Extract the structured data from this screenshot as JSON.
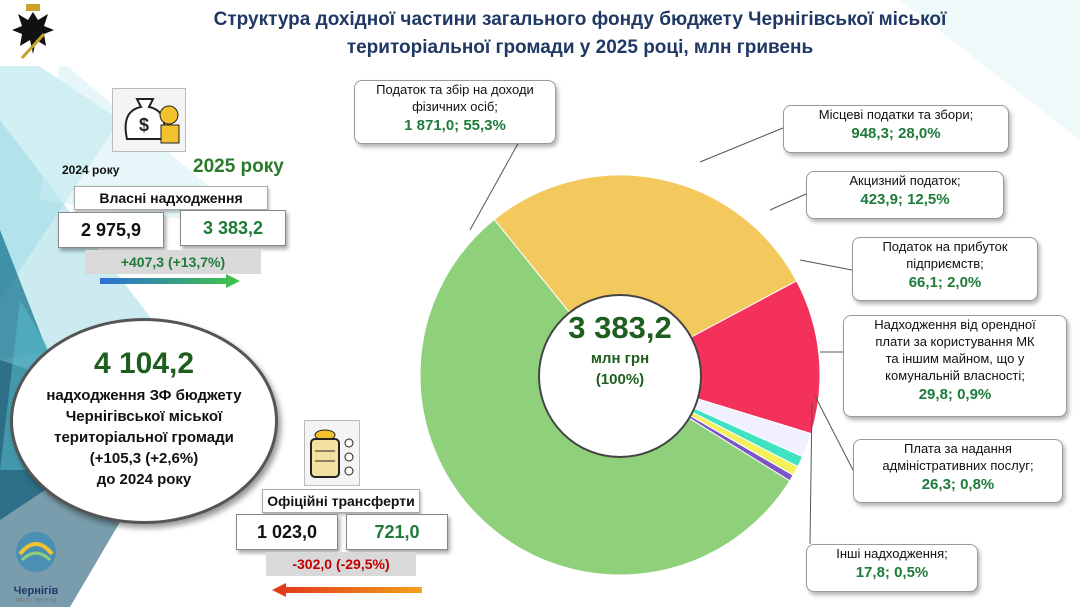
{
  "title": "Структура дохідної частини загального фонду бюджету Чернігівської міської територіальної громади у 2025 році, млн гривень",
  "own_revenue": {
    "year_prev_label": "2024 року",
    "year_curr_label": "2025 року",
    "label": "Власні надходження",
    "value_prev": "2 975,9",
    "value_curr": "3 383,2",
    "change": "+407,3 (+13,7%)"
  },
  "total_circle": {
    "value": "4 104,2",
    "text_line1": "надходження ЗФ бюджету",
    "text_line2": "Чернігівської міської",
    "text_line3": "територіальної громади",
    "text_line4": "(+105,3 (+2,6%)",
    "text_line5": "до 2024 року"
  },
  "transfers": {
    "label": "Офіційні трансферти",
    "value_prev": "1 023,0",
    "value_curr": "721,0",
    "change": "-302,0 (-29,5%)"
  },
  "center": {
    "value": "3 383,2",
    "unit": "млн грн",
    "percent": "(100%)"
  },
  "logo": {
    "name": "Чернігів",
    "tagline": "місто легенд"
  },
  "colors": {
    "pdfo": "#8fd07a",
    "local": "#f3c85c",
    "excise": "#f4315b",
    "profit": "#f0f0ff",
    "rent": "#3fe3c2",
    "admin": "#f5f05a",
    "other": "#7a55c8",
    "title": "#1f3864",
    "value_green": "#1e7b3a",
    "change_red": "#c00000"
  },
  "chart_data": {
    "type": "pie",
    "title": "Структура дохідної частини загального фонду бюджету Чернігівської міської територіальної громади у 2025 році, млн гривень",
    "total": 3383.2,
    "series": [
      {
        "label_line1": "Податок та збір на доходи",
        "label_line2": "фізичних осіб;",
        "value": 1871.0,
        "percent": 55.3,
        "value_text": "1 871,0; 55,3%"
      },
      {
        "label_line1": "Місцеві податки та збори;",
        "label_line2": "",
        "value": 948.3,
        "percent": 28.0,
        "value_text": "948,3;  28,0%"
      },
      {
        "label_line1": "Акцизний податок;",
        "label_line2": "",
        "value": 423.9,
        "percent": 12.5,
        "value_text": "423,9; 12,5%"
      },
      {
        "label_line1": "Податок на прибуток",
        "label_line2": "підприємств;",
        "value": 66.1,
        "percent": 2.0,
        "value_text": "66,1; 2,0%"
      },
      {
        "label_line1": "Надходження від орендної",
        "label_line2": "плати за користування МК",
        "label_line3": "та іншим майном, що у",
        "label_line4": "комунальній власності;",
        "value": 29.8,
        "percent": 0.9,
        "value_text": "29,8; 0,9%"
      },
      {
        "label_line1": "Плата за надання",
        "label_line2": "адміністративних послуг;",
        "value": 26.3,
        "percent": 0.8,
        "value_text": "26,3; 0,8%"
      },
      {
        "label_line1": "Інші надходження;",
        "label_line2": "",
        "value": 17.8,
        "percent": 0.5,
        "value_text": "17,8; 0,5%"
      }
    ]
  }
}
